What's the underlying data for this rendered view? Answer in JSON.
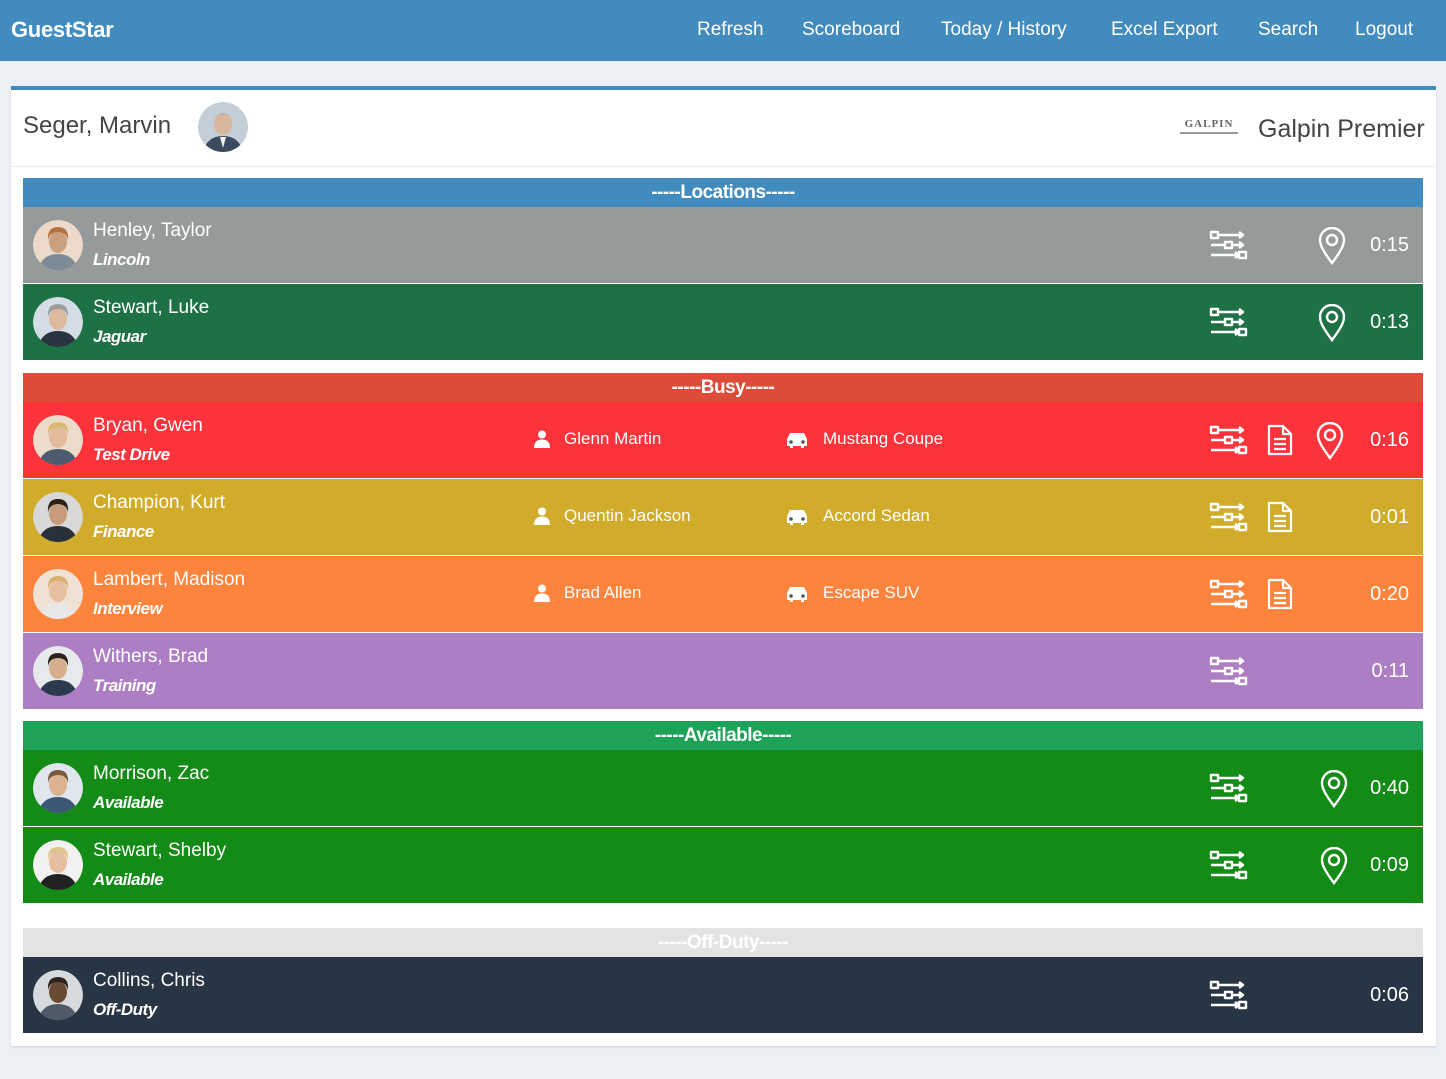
{
  "app": {
    "brand": "GuestStar"
  },
  "nav": {
    "refresh": "Refresh",
    "scoreboard": "Scoreboard",
    "today_history": "Today / History",
    "excel_export": "Excel Export",
    "search": "Search",
    "logout": "Logout"
  },
  "header": {
    "user_name": "Seger, Marvin",
    "dealer_logo_text": "GALPIN",
    "dealer_name": "Galpin Premier"
  },
  "sections": {
    "locations": "-----Locations-----",
    "busy": "-----Busy-----",
    "available": "-----Available-----",
    "off_duty": "-----Off-Duty-----"
  },
  "colors": {
    "nav": "#428bbf",
    "locations": "#428bbf",
    "busy": "#dd4b39",
    "available": "#1ea159",
    "off_duty": "#e3e3e3"
  },
  "staff": [
    {
      "name": "Henley, Taylor",
      "status": "Lincoln",
      "timer": "0:15",
      "color": "#969a9b",
      "icons": [
        "route-icon",
        "location-pin-icon"
      ]
    },
    {
      "name": "Stewart, Luke",
      "status": "Jaguar",
      "timer": "0:13",
      "color": "#1e7144",
      "icons": [
        "route-icon",
        "location-pin-icon"
      ]
    },
    {
      "name": "Bryan, Gwen",
      "status": "Test Drive",
      "customer": "Glenn Martin",
      "vehicle": "Mustang Coupe",
      "timer": "0:16",
      "color": "#fd333b",
      "icons": [
        "route-icon",
        "document-icon",
        "location-pin-icon"
      ]
    },
    {
      "name": "Champion, Kurt",
      "status": "Finance",
      "customer": "Quentin Jackson",
      "vehicle": "Accord Sedan",
      "timer": "0:01",
      "color": "#d1ab2a",
      "icons": [
        "route-icon",
        "document-icon"
      ]
    },
    {
      "name": "Lambert, Madison",
      "status": "Interview",
      "customer": "Brad Allen",
      "vehicle": "Escape SUV",
      "timer": "0:20",
      "color": "#fd843d",
      "icons": [
        "route-icon",
        "document-icon"
      ]
    },
    {
      "name": "Withers, Brad",
      "status": "Training",
      "timer": "0:11",
      "color": "#ad7ec3",
      "icons": [
        "route-icon"
      ]
    },
    {
      "name": "Morrison, Zac",
      "status": "Available",
      "timer": "0:40",
      "color": "#138b16",
      "icons": [
        "route-icon",
        "location-pin-icon"
      ]
    },
    {
      "name": "Stewart, Shelby",
      "status": "Available",
      "timer": "0:09",
      "color": "#138b16",
      "icons": [
        "route-icon",
        "location-pin-icon"
      ]
    },
    {
      "name": "Collins, Chris",
      "status": "Off-Duty",
      "timer": "0:06",
      "color": "#283544",
      "icons": [
        "route-icon"
      ]
    }
  ]
}
